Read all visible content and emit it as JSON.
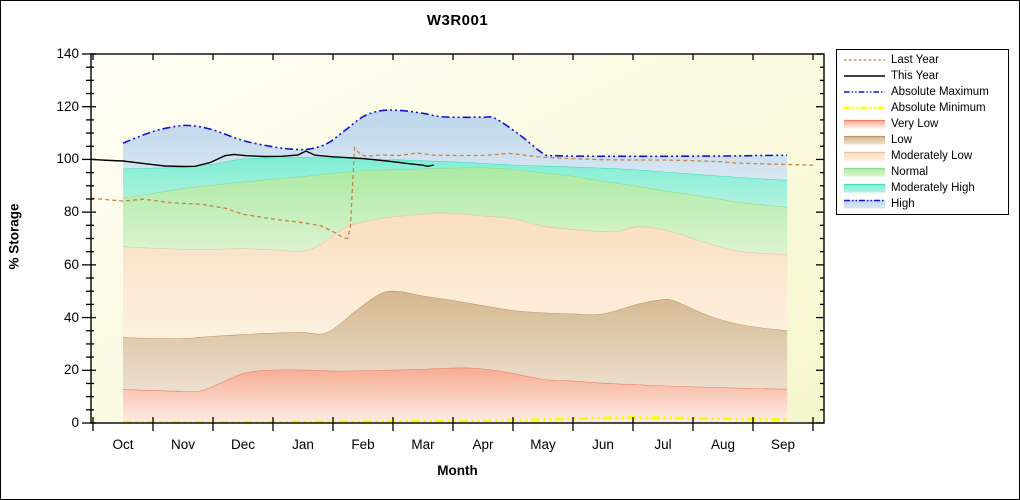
{
  "chart_data": {
    "type": "area",
    "title": "W3R001",
    "ylabel": "% Storage",
    "xlabel": "Month",
    "ylim": [
      0,
      140
    ],
    "ytick_step": 20,
    "yminor_step": 5,
    "categories": [
      "Oct",
      "Nov",
      "Dec",
      "Jan",
      "Feb",
      "Mar",
      "Apr",
      "May",
      "Jun",
      "Jul",
      "Aug",
      "Sep"
    ],
    "legend_position": "outside-top-right",
    "grid": false,
    "boundaries": {
      "zero": [
        [
          0,
          0
        ],
        [
          11.07,
          0
        ]
      ],
      "very_low_top": [
        [
          0,
          12.8
        ],
        [
          0.5,
          12.4
        ],
        [
          1,
          12.1
        ],
        [
          1.3,
          12.3
        ],
        [
          1.6,
          15.0
        ],
        [
          2,
          18.8
        ],
        [
          2.4,
          20.1
        ],
        [
          3,
          20.2
        ],
        [
          3.5,
          19.8
        ],
        [
          4,
          19.9
        ],
        [
          4.5,
          20.2
        ],
        [
          5,
          20.5
        ],
        [
          5.6,
          21.0
        ],
        [
          6,
          20.6
        ],
        [
          6.4,
          19.3
        ],
        [
          7,
          16.7
        ],
        [
          7.5,
          16.0
        ],
        [
          8,
          15.2
        ],
        [
          8.5,
          14.7
        ],
        [
          9,
          14.2
        ],
        [
          9.5,
          13.8
        ],
        [
          10,
          13.5
        ],
        [
          10.5,
          13.2
        ],
        [
          11.07,
          12.9
        ]
      ],
      "low_top": [
        [
          0,
          32.5
        ],
        [
          0.5,
          32.2
        ],
        [
          1,
          32.1
        ],
        [
          1.5,
          33.0
        ],
        [
          2,
          33.6
        ],
        [
          2.5,
          34.2
        ],
        [
          3,
          34.4
        ],
        [
          3.4,
          34.4
        ],
        [
          3.9,
          43.0
        ],
        [
          4.3,
          49.2
        ],
        [
          4.6,
          50.0
        ],
        [
          5,
          48.3
        ],
        [
          5.5,
          46.6
        ],
        [
          6,
          44.6
        ],
        [
          6.5,
          42.8
        ],
        [
          7,
          41.9
        ],
        [
          7.5,
          41.5
        ],
        [
          8,
          41.5
        ],
        [
          8.6,
          45.3
        ],
        [
          9,
          46.9
        ],
        [
          9.2,
          46.3
        ],
        [
          9.6,
          42.3
        ],
        [
          10,
          39.0
        ],
        [
          10.5,
          36.6
        ],
        [
          11.07,
          35.1
        ]
      ],
      "normal_bottom": [
        [
          0,
          67.0
        ],
        [
          0.5,
          66.4
        ],
        [
          1,
          66.0
        ],
        [
          1.5,
          66.0
        ],
        [
          2,
          66.2
        ],
        [
          2.5,
          65.8
        ],
        [
          3,
          65.3
        ],
        [
          3.3,
          68.0
        ],
        [
          3.7,
          74.3
        ],
        [
          4,
          76.3
        ],
        [
          4.4,
          78.0
        ],
        [
          5,
          79.3
        ],
        [
          5.4,
          79.8
        ],
        [
          6,
          78.6
        ],
        [
          6.5,
          77.6
        ],
        [
          7,
          74.8
        ],
        [
          7.5,
          73.5
        ],
        [
          8,
          72.7
        ],
        [
          8.3,
          73.0
        ],
        [
          8.6,
          74.6
        ],
        [
          9.1,
          72.9
        ],
        [
          9.7,
          68.6
        ],
        [
          10.3,
          65.2
        ],
        [
          11.07,
          64.0
        ]
      ],
      "normal_top": [
        [
          0,
          85.5
        ],
        [
          0.5,
          87.2
        ],
        [
          1,
          89.0
        ],
        [
          1.5,
          90.3
        ],
        [
          2,
          91.5
        ],
        [
          2.5,
          92.6
        ],
        [
          3,
          93.6
        ],
        [
          3.5,
          94.8
        ],
        [
          4,
          95.8
        ],
        [
          4.5,
          96.2
        ],
        [
          5,
          96.5
        ],
        [
          5.5,
          96.8
        ],
        [
          6,
          97.0
        ],
        [
          6.5,
          96.3
        ],
        [
          7,
          95.0
        ],
        [
          7.5,
          93.7
        ],
        [
          8,
          91.8
        ],
        [
          8.6,
          89.8
        ],
        [
          9,
          88.3
        ],
        [
          9.5,
          86.6
        ],
        [
          10,
          84.8
        ],
        [
          10.3,
          83.7
        ],
        [
          11.07,
          81.9
        ]
      ],
      "mod_high_top": [
        [
          0,
          96.5
        ],
        [
          0.5,
          96.8
        ],
        [
          1,
          97.2
        ],
        [
          1.5,
          98.3
        ],
        [
          2,
          100.3
        ],
        [
          2.5,
          100.6
        ],
        [
          3,
          100.8
        ],
        [
          3.5,
          100.6
        ],
        [
          4,
          100.2
        ],
        [
          4.5,
          100.0
        ],
        [
          5,
          99.6
        ],
        [
          5.5,
          99.2
        ],
        [
          6,
          98.6
        ],
        [
          6.5,
          98.0
        ],
        [
          7,
          97.6
        ],
        [
          7.5,
          97.2
        ],
        [
          8,
          96.8
        ],
        [
          8.5,
          96.2
        ],
        [
          9,
          95.4
        ],
        [
          9.5,
          94.5
        ],
        [
          10,
          93.7
        ],
        [
          10.5,
          92.9
        ],
        [
          11.07,
          92.2
        ]
      ],
      "abs_max": [
        [
          0,
          106.2
        ],
        [
          0.5,
          110.6
        ],
        [
          0.9,
          112.6
        ],
        [
          1.15,
          112.8
        ],
        [
          1.5,
          111.2
        ],
        [
          2,
          107.2
        ],
        [
          2.5,
          104.8
        ],
        [
          2.8,
          103.9
        ],
        [
          3.1,
          103.9
        ],
        [
          3.4,
          106.0
        ],
        [
          3.7,
          111.0
        ],
        [
          4,
          116.2
        ],
        [
          4.3,
          118.5
        ],
        [
          4.6,
          118.6
        ],
        [
          5,
          117.5
        ],
        [
          5.3,
          116.2
        ],
        [
          5.7,
          116.0
        ],
        [
          6,
          116.0
        ],
        [
          6.2,
          115.6
        ],
        [
          6.6,
          109.5
        ],
        [
          7,
          102.3
        ],
        [
          7.2,
          101.4
        ],
        [
          8,
          101.2
        ],
        [
          9,
          101.2
        ],
        [
          10,
          101.3
        ],
        [
          10.7,
          101.5
        ],
        [
          11.07,
          101.6
        ]
      ],
      "abs_min": [
        [
          0,
          0.3
        ],
        [
          1,
          0.3
        ],
        [
          2,
          0.3
        ],
        [
          3,
          0.4
        ],
        [
          4,
          0.5
        ],
        [
          5,
          0.7
        ],
        [
          6,
          0.9
        ],
        [
          7,
          1.3
        ],
        [
          8,
          1.9
        ],
        [
          8.5,
          2.1
        ],
        [
          9,
          2.0
        ],
        [
          9.5,
          1.8
        ],
        [
          10,
          1.6
        ],
        [
          10.5,
          1.4
        ],
        [
          11.07,
          1.2
        ]
      ]
    },
    "bands": [
      {
        "label": "Very Low",
        "upper": "very_low_top",
        "lower": "zero",
        "edge": "#EC7E62",
        "fill_top": "#F8AB92",
        "fill_bottom": "#FDEDE5"
      },
      {
        "label": "Low",
        "upper": "low_top",
        "lower": "very_low_top",
        "edge": "#BE9660",
        "fill_top": "#D4B78F",
        "fill_bottom": "#EDE0CF"
      },
      {
        "label": "Moderately Low",
        "upper": "normal_bottom",
        "lower": "low_top",
        "edge": "#E5C3A0",
        "fill_top": "#FADEC0",
        "fill_bottom": "#FDF1E0"
      },
      {
        "label": "Normal",
        "upper": "normal_top",
        "lower": "normal_bottom",
        "edge": "#8FDB8B",
        "fill_top": "#ACEAA4",
        "fill_bottom": "#DDF4D2"
      },
      {
        "label": "Moderately High",
        "upper": "mod_high_top",
        "lower": "normal_top",
        "edge": "#42DBBE",
        "fill_top": "#80EED4",
        "fill_bottom": "#B2F2E0"
      },
      {
        "label": "High",
        "upper": "abs_max",
        "lower": "mod_high_top",
        "edge": "none",
        "fill_top": "#BCD6EB",
        "fill_bottom": "#D8E7F3"
      }
    ],
    "lines": [
      {
        "label": "Last Year",
        "color": "#C6854A",
        "width": 1.3,
        "dash": "4 3",
        "smooth": false,
        "points": [
          [
            -0.53,
            85.3
          ],
          [
            -0.2,
            84.6
          ],
          [
            0,
            84.2
          ],
          [
            0.35,
            84.9
          ],
          [
            0.8,
            83.6
          ],
          [
            1.3,
            83.0
          ],
          [
            1.7,
            81.5
          ],
          [
            2,
            79.2
          ],
          [
            2.5,
            77.4
          ],
          [
            3,
            76.0
          ],
          [
            3.3,
            74.8
          ],
          [
            3.55,
            72.0
          ],
          [
            3.68,
            70.2
          ],
          [
            3.74,
            70.0
          ],
          [
            3.79,
            74.0
          ],
          [
            3.83,
            92.0
          ],
          [
            3.86,
            104.4
          ],
          [
            3.95,
            102.0
          ],
          [
            4.05,
            101.2
          ],
          [
            4.3,
            101.7
          ],
          [
            4.6,
            101.5
          ],
          [
            4.9,
            102.4
          ],
          [
            5.2,
            101.6
          ],
          [
            5.6,
            101.5
          ],
          [
            6,
            101.5
          ],
          [
            6.45,
            102.3
          ],
          [
            6.8,
            101.3
          ],
          [
            7,
            100.8
          ],
          [
            7.5,
            100.3
          ],
          [
            8,
            99.9
          ],
          [
            8.5,
            99.8
          ],
          [
            9,
            99.8
          ],
          [
            9.5,
            99.5
          ],
          [
            10,
            99.1
          ],
          [
            10.2,
            98.7
          ],
          [
            10.5,
            98.4
          ],
          [
            11,
            98.1
          ],
          [
            11.5,
            97.8
          ]
        ]
      },
      {
        "label": "This Year",
        "color": "#000000",
        "width": 1.4,
        "dash": "",
        "smooth": false,
        "points": [
          [
            -0.53,
            100.0
          ],
          [
            -0.2,
            99.6
          ],
          [
            0,
            99.4
          ],
          [
            0.35,
            98.4
          ],
          [
            0.7,
            97.5
          ],
          [
            1,
            97.3
          ],
          [
            1.2,
            97.4
          ],
          [
            1.45,
            98.8
          ],
          [
            1.7,
            101.4
          ],
          [
            1.85,
            101.9
          ],
          [
            2.05,
            101.4
          ],
          [
            2.35,
            101.1
          ],
          [
            2.65,
            101.2
          ],
          [
            2.92,
            101.7
          ],
          [
            3.05,
            103.2
          ],
          [
            3.2,
            101.6
          ],
          [
            3.5,
            101.0
          ],
          [
            4,
            100.3
          ],
          [
            4.4,
            99.4
          ],
          [
            4.8,
            98.3
          ],
          [
            5,
            97.8
          ],
          [
            5.08,
            97.4
          ],
          [
            5.18,
            97.9
          ]
        ]
      },
      {
        "label": "Absolute Maximum",
        "color": "#1414CE",
        "width": 1.6,
        "dash": "8 3 2 3 2 3",
        "smooth": true,
        "use_boundary": "abs_max"
      },
      {
        "label": "Absolute Minimum",
        "color": "#FFFF00",
        "width": 2.8,
        "dash": "9 3 3 3 3 3",
        "smooth": true,
        "use_boundary": "abs_min"
      }
    ],
    "legend": [
      {
        "label": "Last Year",
        "type": "line"
      },
      {
        "label": "This Year",
        "type": "line"
      },
      {
        "label": "Absolute Maximum",
        "type": "line"
      },
      {
        "label": "Absolute Minimum",
        "type": "line"
      },
      {
        "label": "Very Low",
        "type": "band"
      },
      {
        "label": "Low",
        "type": "band"
      },
      {
        "label": "Moderately Low",
        "type": "band"
      },
      {
        "label": "Normal",
        "type": "band"
      },
      {
        "label": "Moderately High",
        "type": "band"
      },
      {
        "label": "High",
        "type": "band_line"
      }
    ],
    "styles": {
      "plot_bg_top": "#FFFEF6",
      "plot_bg_bottom": "#F6F6CC",
      "frame_color": "#000000"
    }
  }
}
